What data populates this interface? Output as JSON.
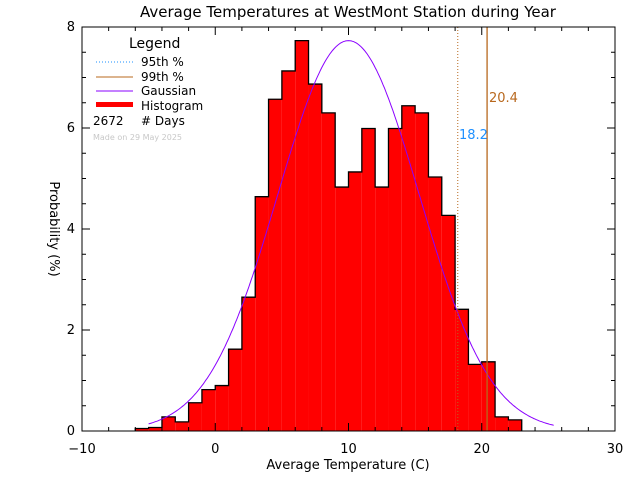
{
  "chart_data": {
    "type": "bar",
    "title": "Average Temperatures at WestMont Station during Year",
    "xlabel": "Average Temperature (C)",
    "ylabel": "Probability (%)",
    "xlim": [
      -10,
      30
    ],
    "ylim": [
      0,
      8
    ],
    "xticks": [
      -10,
      0,
      10,
      20,
      30
    ],
    "yticks": [
      0,
      2,
      4,
      6,
      8
    ],
    "bin_edges": [
      -6,
      -5,
      -4,
      -3,
      -2,
      -1,
      0,
      1,
      2,
      3,
      4,
      5,
      6,
      7,
      8,
      9,
      10,
      11,
      12,
      13,
      14,
      15,
      16,
      17,
      18,
      19,
      20,
      21,
      22,
      23
    ],
    "values": [
      0.05,
      0.07,
      0.28,
      0.18,
      0.56,
      0.82,
      0.9,
      1.62,
      2.65,
      4.64,
      6.57,
      7.13,
      7.73,
      6.87,
      6.3,
      4.83,
      5.13,
      5.99,
      4.83,
      5.99,
      6.44,
      6.3,
      5.03,
      4.27,
      2.41,
      1.32,
      1.37,
      0.28,
      0.22
    ],
    "gaussian": {
      "mean": 10.0,
      "sigma": 5.3,
      "peak": 7.73,
      "range": [
        -5,
        25.5
      ]
    },
    "percentile_95": {
      "value": 18.2,
      "label": "18.2",
      "color": "#1e90ff",
      "line_color": "#b8681e"
    },
    "percentile_99": {
      "value": 20.4,
      "label": "20.4",
      "color": "#b8681e"
    },
    "colors": {
      "histogram": "#ff0000",
      "gaussian": "#8a00ff"
    },
    "legend": {
      "title": "Legend",
      "placement": "top-left",
      "items": [
        "95th %",
        "99th %",
        "Gaussian",
        "Histogram"
      ],
      "days_count": "2672",
      "days_label": "# Days",
      "made_on": "Made on 29 May 2025"
    }
  }
}
